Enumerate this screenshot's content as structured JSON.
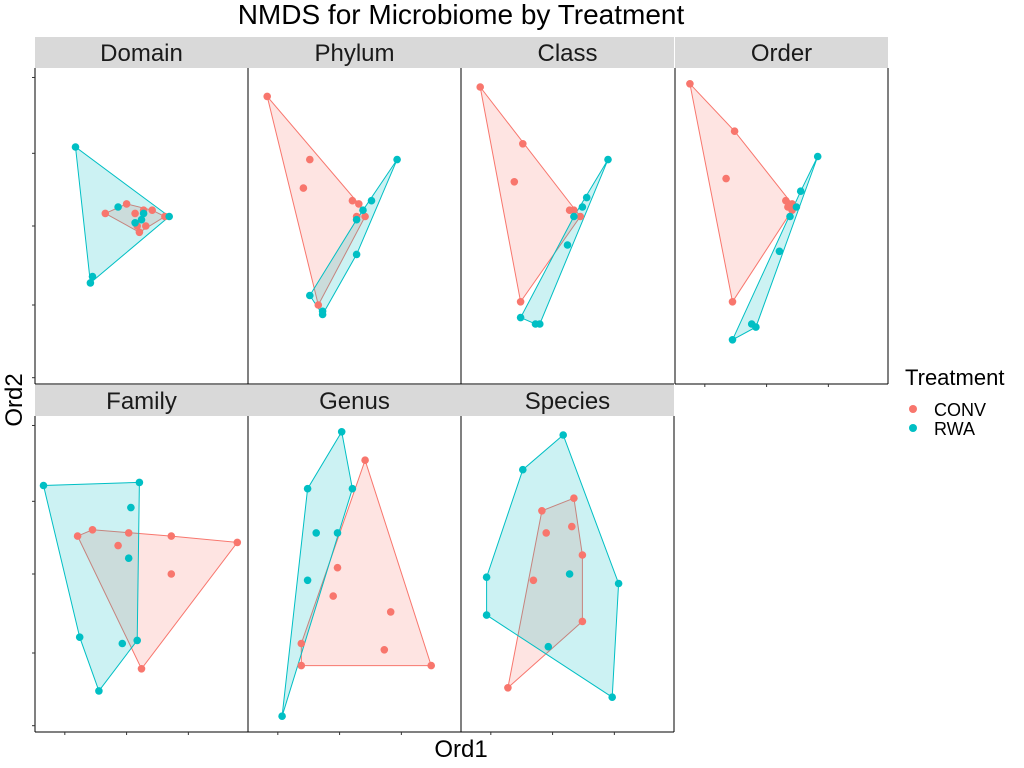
{
  "chart_data": {
    "type": "scatter",
    "title": "NMDS for Microbiome by Treatment",
    "xlabel": "Ord1",
    "ylabel": "Ord2",
    "grid": false,
    "hulls": true,
    "colors": {
      "CONV": "#F8766D",
      "RWA": "#00BFC4"
    },
    "legend": {
      "title": "Treatment",
      "position": "right",
      "entries": [
        "CONV",
        "RWA"
      ]
    },
    "xlim": [
      0,
      1
    ],
    "ylim": [
      0,
      1
    ],
    "panels": [
      {
        "name": "Domain",
        "series": [
          {
            "name": "CONV",
            "points": [
              [
                0.33,
                0.54
              ],
              [
                0.43,
                0.57
              ],
              [
                0.51,
                0.55
              ],
              [
                0.61,
                0.53
              ],
              [
                0.48,
                0.5
              ],
              [
                0.49,
                0.48
              ],
              [
                0.52,
                0.5
              ],
              [
                0.55,
                0.55
              ],
              [
                0.47,
                0.54
              ]
            ]
          },
          {
            "name": "RWA",
            "points": [
              [
                0.19,
                0.75
              ],
              [
                0.63,
                0.53
              ],
              [
                0.27,
                0.34
              ],
              [
                0.26,
                0.32
              ],
              [
                0.39,
                0.56
              ],
              [
                0.5,
                0.52
              ],
              [
                0.51,
                0.54
              ],
              [
                0.47,
                0.51
              ]
            ]
          }
        ]
      },
      {
        "name": "Phylum",
        "series": [
          {
            "name": "CONV",
            "points": [
              [
                0.09,
                0.91
              ],
              [
                0.29,
                0.71
              ],
              [
                0.26,
                0.62
              ],
              [
                0.49,
                0.58
              ],
              [
                0.52,
                0.57
              ],
              [
                0.55,
                0.53
              ],
              [
                0.51,
                0.53
              ],
              [
                0.33,
                0.25
              ]
            ]
          },
          {
            "name": "RWA",
            "points": [
              [
                0.7,
                0.71
              ],
              [
                0.58,
                0.58
              ],
              [
                0.54,
                0.55
              ],
              [
                0.51,
                0.52
              ],
              [
                0.51,
                0.41
              ],
              [
                0.29,
                0.28
              ],
              [
                0.35,
                0.23
              ],
              [
                0.35,
                0.22
              ]
            ]
          }
        ]
      },
      {
        "name": "Class",
        "series": [
          {
            "name": "CONV",
            "points": [
              [
                0.09,
                0.94
              ],
              [
                0.29,
                0.76
              ],
              [
                0.25,
                0.64
              ],
              [
                0.51,
                0.55
              ],
              [
                0.53,
                0.55
              ],
              [
                0.56,
                0.53
              ],
              [
                0.28,
                0.26
              ]
            ]
          },
          {
            "name": "RWA",
            "points": [
              [
                0.69,
                0.71
              ],
              [
                0.59,
                0.59
              ],
              [
                0.57,
                0.56
              ],
              [
                0.53,
                0.53
              ],
              [
                0.5,
                0.44
              ],
              [
                0.28,
                0.21
              ],
              [
                0.35,
                0.19
              ],
              [
                0.37,
                0.19
              ]
            ]
          }
        ]
      },
      {
        "name": "Order",
        "series": [
          {
            "name": "CONV",
            "points": [
              [
                0.07,
                0.95
              ],
              [
                0.28,
                0.8
              ],
              [
                0.24,
                0.65
              ],
              [
                0.52,
                0.58
              ],
              [
                0.55,
                0.57
              ],
              [
                0.53,
                0.56
              ],
              [
                0.55,
                0.55
              ],
              [
                0.27,
                0.26
              ]
            ]
          },
          {
            "name": "RWA",
            "points": [
              [
                0.67,
                0.72
              ],
              [
                0.59,
                0.61
              ],
              [
                0.57,
                0.56
              ],
              [
                0.54,
                0.53
              ],
              [
                0.49,
                0.42
              ],
              [
                0.36,
                0.19
              ],
              [
                0.38,
                0.18
              ],
              [
                0.27,
                0.14
              ]
            ]
          }
        ]
      },
      {
        "name": "Family",
        "series": [
          {
            "name": "CONV",
            "points": [
              [
                0.2,
                0.62
              ],
              [
                0.27,
                0.64
              ],
              [
                0.44,
                0.63
              ],
              [
                0.39,
                0.59
              ],
              [
                0.64,
                0.62
              ],
              [
                0.64,
                0.5
              ],
              [
                0.95,
                0.6
              ],
              [
                0.5,
                0.2
              ]
            ]
          },
          {
            "name": "RWA",
            "points": [
              [
                0.04,
                0.78
              ],
              [
                0.49,
                0.79
              ],
              [
                0.45,
                0.71
              ],
              [
                0.44,
                0.55
              ],
              [
                0.21,
                0.3
              ],
              [
                0.41,
                0.28
              ],
              [
                0.48,
                0.29
              ],
              [
                0.3,
                0.13
              ]
            ]
          }
        ]
      },
      {
        "name": "Genus",
        "series": [
          {
            "name": "CONV",
            "points": [
              [
                0.55,
                0.86
              ],
              [
                0.42,
                0.52
              ],
              [
                0.4,
                0.43
              ],
              [
                0.67,
                0.38
              ],
              [
                0.64,
                0.26
              ],
              [
                0.86,
                0.21
              ],
              [
                0.25,
                0.21
              ],
              [
                0.25,
                0.28
              ]
            ]
          },
          {
            "name": "RWA",
            "points": [
              [
                0.44,
                0.95
              ],
              [
                0.28,
                0.77
              ],
              [
                0.49,
                0.77
              ],
              [
                0.32,
                0.63
              ],
              [
                0.42,
                0.63
              ],
              [
                0.28,
                0.48
              ],
              [
                0.16,
                0.05
              ]
            ]
          }
        ]
      },
      {
        "name": "Species",
        "series": [
          {
            "name": "CONV",
            "points": [
              [
                0.38,
                0.7
              ],
              [
                0.53,
                0.74
              ],
              [
                0.52,
                0.65
              ],
              [
                0.4,
                0.63
              ],
              [
                0.57,
                0.56
              ],
              [
                0.34,
                0.48
              ],
              [
                0.57,
                0.35
              ],
              [
                0.22,
                0.14
              ]
            ]
          },
          {
            "name": "RWA",
            "points": [
              [
                0.48,
                0.94
              ],
              [
                0.29,
                0.83
              ],
              [
                0.12,
                0.49
              ],
              [
                0.12,
                0.37
              ],
              [
                0.51,
                0.5
              ],
              [
                0.41,
                0.27
              ],
              [
                0.74,
                0.47
              ],
              [
                0.71,
                0.11
              ]
            ]
          }
        ]
      }
    ]
  }
}
